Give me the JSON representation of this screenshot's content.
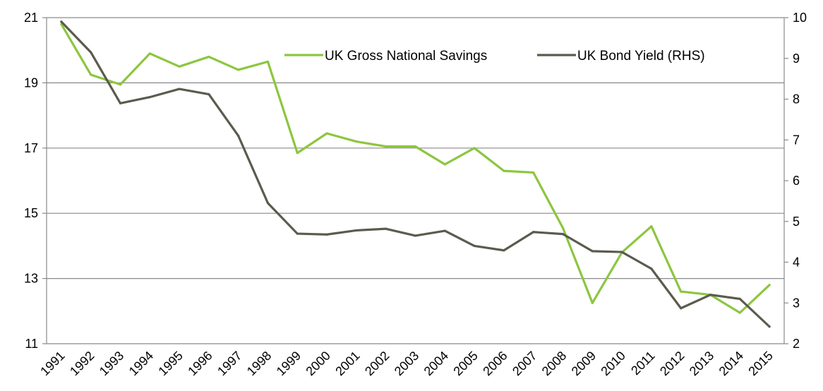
{
  "chart_data": {
    "type": "line",
    "title": "",
    "xlabel": "",
    "ylabel": "",
    "ylabel_right": "",
    "grid": true,
    "legend_position": "top-right",
    "categories": [
      "1991",
      "1992",
      "1993",
      "1994",
      "1995",
      "1996",
      "1997",
      "1998",
      "1999",
      "2000",
      "2001",
      "2002",
      "2003",
      "2004",
      "2005",
      "2006",
      "2007",
      "2008",
      "2009",
      "2010",
      "2011",
      "2012",
      "2013",
      "2014",
      "2015"
    ],
    "y_left": {
      "ylim": [
        11,
        21
      ],
      "ticks": [
        "11",
        "13",
        "15",
        "17",
        "19",
        "21"
      ]
    },
    "y_right": {
      "ylim": [
        2,
        10
      ],
      "ticks": [
        "2",
        "3",
        "4",
        "5",
        "6",
        "7",
        "8",
        "9",
        "10"
      ]
    },
    "series": [
      {
        "name": "UK Gross National Savings",
        "axis": "left",
        "color": "#8cc63f",
        "values": [
          20.8,
          19.25,
          18.95,
          19.9,
          19.5,
          19.8,
          19.4,
          19.65,
          16.85,
          17.45,
          17.2,
          17.05,
          17.05,
          16.5,
          17.0,
          16.3,
          16.25,
          14.55,
          12.25,
          13.8,
          14.6,
          12.6,
          12.5,
          11.95,
          12.8
        ]
      },
      {
        "name": "UK Bond Yield (RHS)",
        "axis": "right",
        "color": "#5b5b4e",
        "values": [
          9.9,
          9.15,
          7.9,
          8.05,
          8.25,
          8.12,
          7.1,
          5.45,
          4.7,
          4.68,
          4.78,
          4.82,
          4.65,
          4.77,
          4.4,
          4.29,
          4.74,
          4.69,
          4.27,
          4.25,
          3.84,
          2.87,
          3.2,
          3.1,
          2.42
        ]
      }
    ]
  }
}
